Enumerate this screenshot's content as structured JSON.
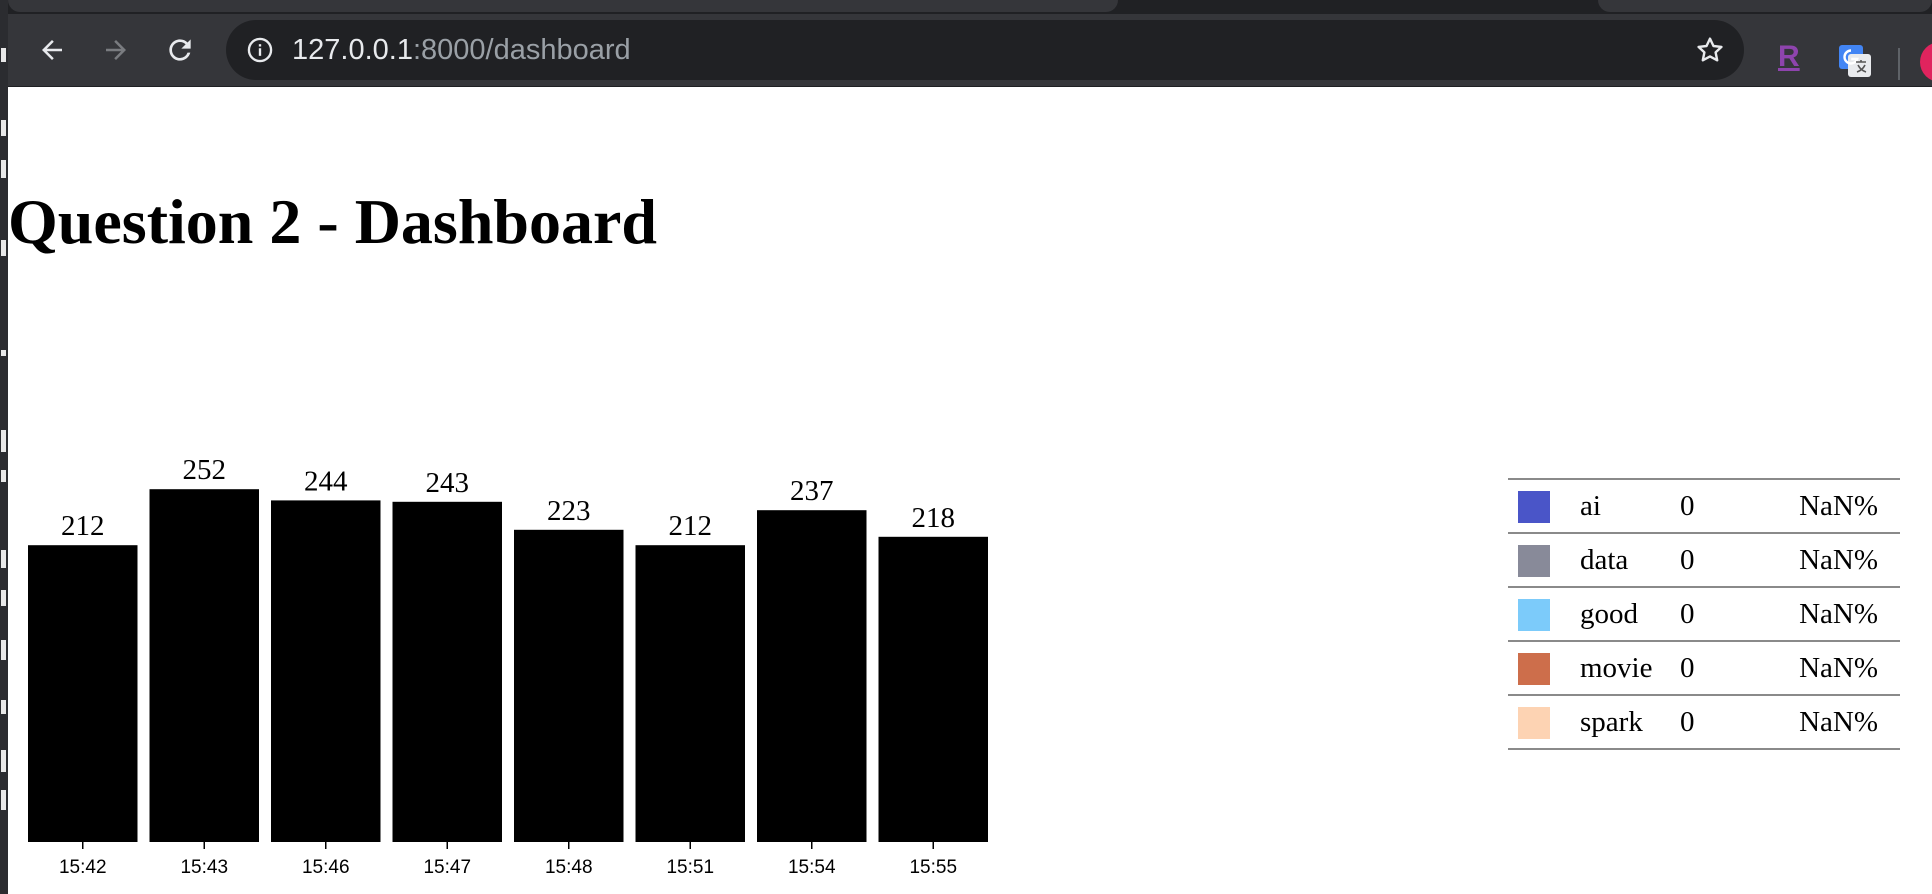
{
  "browser": {
    "url_host": "127.0.0.1",
    "url_path": ":8000/dashboard",
    "extension_label": "R"
  },
  "page": {
    "title": "Question 2 - Dashboard"
  },
  "chart_data": {
    "type": "bar",
    "categories": [
      "15:42",
      "15:43",
      "15:46",
      "15:47",
      "15:48",
      "15:51",
      "15:54",
      "15:55"
    ],
    "values": [
      212,
      252,
      244,
      243,
      223,
      212,
      237,
      218
    ],
    "bar_color": "#000000",
    "title": "",
    "xlabel": "",
    "ylabel": ""
  },
  "legend": {
    "rows": [
      {
        "name": "ai",
        "count": "0",
        "percent": "NaN%",
        "color": "#4a55c8"
      },
      {
        "name": "data",
        "count": "0",
        "percent": "NaN%",
        "color": "#888a99"
      },
      {
        "name": "good",
        "count": "0",
        "percent": "NaN%",
        "color": "#7ccbfa"
      },
      {
        "name": "movie",
        "count": "0",
        "percent": "NaN%",
        "color": "#cd6e4b"
      },
      {
        "name": "spark",
        "count": "0",
        "percent": "NaN%",
        "color": "#fdd3b3"
      }
    ]
  }
}
